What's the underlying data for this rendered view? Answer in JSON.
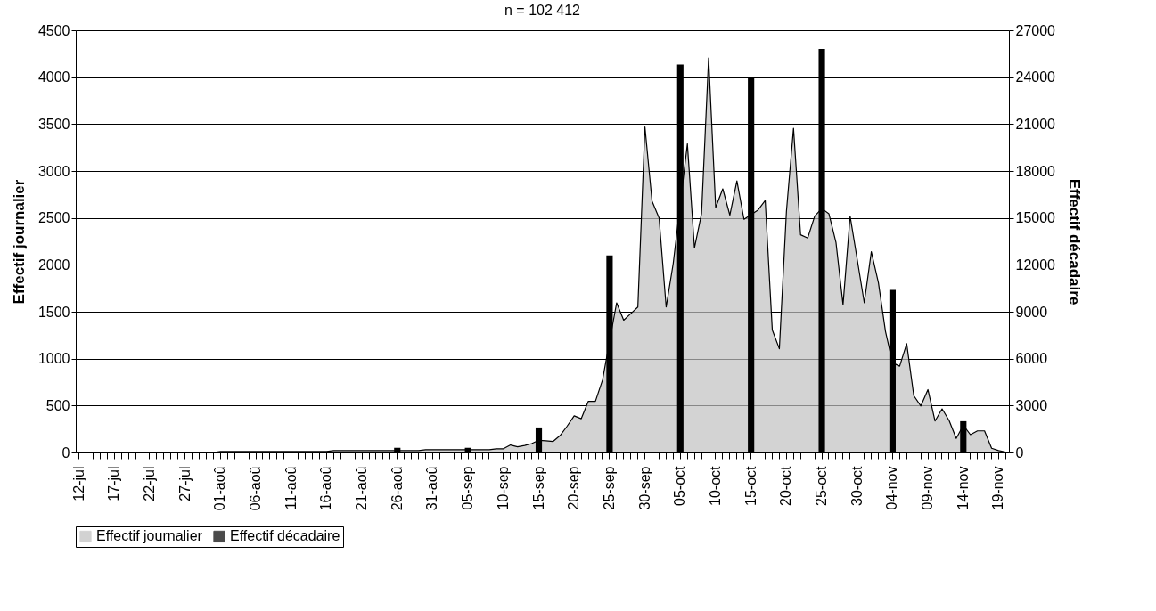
{
  "chart_data": {
    "type": "area",
    "title": "n = 102 412",
    "ylabel": "Effectif journalier",
    "y2label": "Effectif décadaire",
    "categories": [
      "12-jul",
      null,
      null,
      null,
      null,
      "17-jul",
      null,
      null,
      null,
      null,
      "22-jul",
      null,
      null,
      null,
      null,
      "27-jul",
      null,
      null,
      null,
      null,
      "01-aoû",
      null,
      null,
      null,
      null,
      "06-aoû",
      null,
      null,
      null,
      null,
      "11-aoû",
      null,
      null,
      null,
      null,
      "16-aoû",
      null,
      null,
      null,
      null,
      "21-aoû",
      null,
      null,
      null,
      null,
      "26-aoû",
      null,
      null,
      null,
      null,
      "31-aoû",
      null,
      null,
      null,
      null,
      "05-sep",
      null,
      null,
      null,
      null,
      "10-sep",
      null,
      null,
      null,
      null,
      "15-sep",
      null,
      null,
      null,
      null,
      "20-sep",
      null,
      null,
      null,
      null,
      "25-sep",
      null,
      null,
      null,
      null,
      "30-sep",
      null,
      null,
      null,
      null,
      "05-oct",
      null,
      null,
      null,
      null,
      "10-oct",
      null,
      null,
      null,
      null,
      "15-oct",
      null,
      null,
      null,
      null,
      "20-oct",
      null,
      null,
      null,
      null,
      "25-oct",
      null,
      null,
      null,
      null,
      "30-oct",
      null,
      null,
      null,
      null,
      "04-nov",
      null,
      null,
      null,
      null,
      "09-nov",
      null,
      null,
      null,
      null,
      "14-nov",
      null,
      null,
      null,
      null,
      "19-nov",
      null
    ],
    "series": [
      {
        "name": "Effectif journalier",
        "color": "#c0c0c0",
        "values": [
          0,
          0,
          0,
          0,
          0,
          0,
          0,
          0,
          0,
          0,
          0,
          0,
          0,
          0,
          0,
          0,
          0,
          0,
          0,
          0,
          10,
          10,
          10,
          10,
          10,
          10,
          10,
          10,
          10,
          10,
          10,
          10,
          10,
          10,
          10,
          10,
          20,
          20,
          20,
          20,
          20,
          20,
          20,
          20,
          20,
          20,
          20,
          20,
          20,
          30,
          30,
          30,
          30,
          30,
          30,
          30,
          30,
          30,
          30,
          40,
          40,
          80,
          60,
          75,
          95,
          130,
          125,
          117,
          180,
          280,
          390,
          360,
          545,
          545,
          770,
          null,
          1595,
          1410,
          1480,
          1550,
          3470,
          2680,
          2500,
          1550,
          2015,
          null,
          3290,
          2180,
          2545,
          4205,
          2610,
          2810,
          2530,
          2895,
          2485,
          null,
          2585,
          2685,
          1305,
          1105,
          2570,
          3455,
          2320,
          2285,
          2520,
          2600,
          2545,
          2240,
          1575,
          2520,
          2060,
          1595,
          2140,
          1810,
          1290,
          955,
          920,
          1160,
          605,
          495,
          670,
          335,
          465,
          340,
          150,
          290,
          190,
          230,
          230,
          45,
          20,
          5
        ]
      },
      {
        "name": "Effectif décadaire",
        "type": "bar",
        "axis": "y2",
        "color": "#000000",
        "values": [
          null,
          null,
          null,
          null,
          null,
          null,
          null,
          null,
          null,
          null,
          null,
          null,
          null,
          null,
          null,
          null,
          null,
          null,
          null,
          null,
          null,
          null,
          null,
          null,
          null,
          null,
          null,
          null,
          null,
          null,
          null,
          null,
          null,
          null,
          null,
          null,
          null,
          null,
          null,
          null,
          null,
          null,
          null,
          null,
          null,
          300,
          null,
          null,
          null,
          null,
          null,
          null,
          null,
          null,
          null,
          300,
          null,
          null,
          null,
          null,
          null,
          null,
          null,
          null,
          null,
          1600,
          null,
          null,
          null,
          null,
          null,
          null,
          null,
          null,
          null,
          12600,
          null,
          null,
          null,
          null,
          null,
          null,
          null,
          null,
          null,
          24800,
          null,
          null,
          null,
          null,
          null,
          null,
          null,
          null,
          null,
          24000,
          null,
          null,
          null,
          null,
          null,
          null,
          null,
          null,
          null,
          25800,
          null,
          null,
          null,
          null,
          null,
          null,
          null,
          null,
          null,
          10400,
          null,
          null,
          null,
          null,
          null,
          null,
          null,
          null,
          null,
          2000,
          null,
          null,
          null,
          null,
          null,
          null
        ]
      }
    ],
    "ylim": [
      0,
      4500
    ],
    "yticks": [
      0,
      500,
      1000,
      1500,
      2000,
      2500,
      3000,
      3500,
      4000,
      4500
    ],
    "y2lim": [
      0,
      27000
    ],
    "y2ticks": [
      0,
      3000,
      6000,
      9000,
      12000,
      15000,
      18000,
      21000,
      24000,
      27000
    ],
    "grid": "y",
    "legend": "bottom"
  }
}
